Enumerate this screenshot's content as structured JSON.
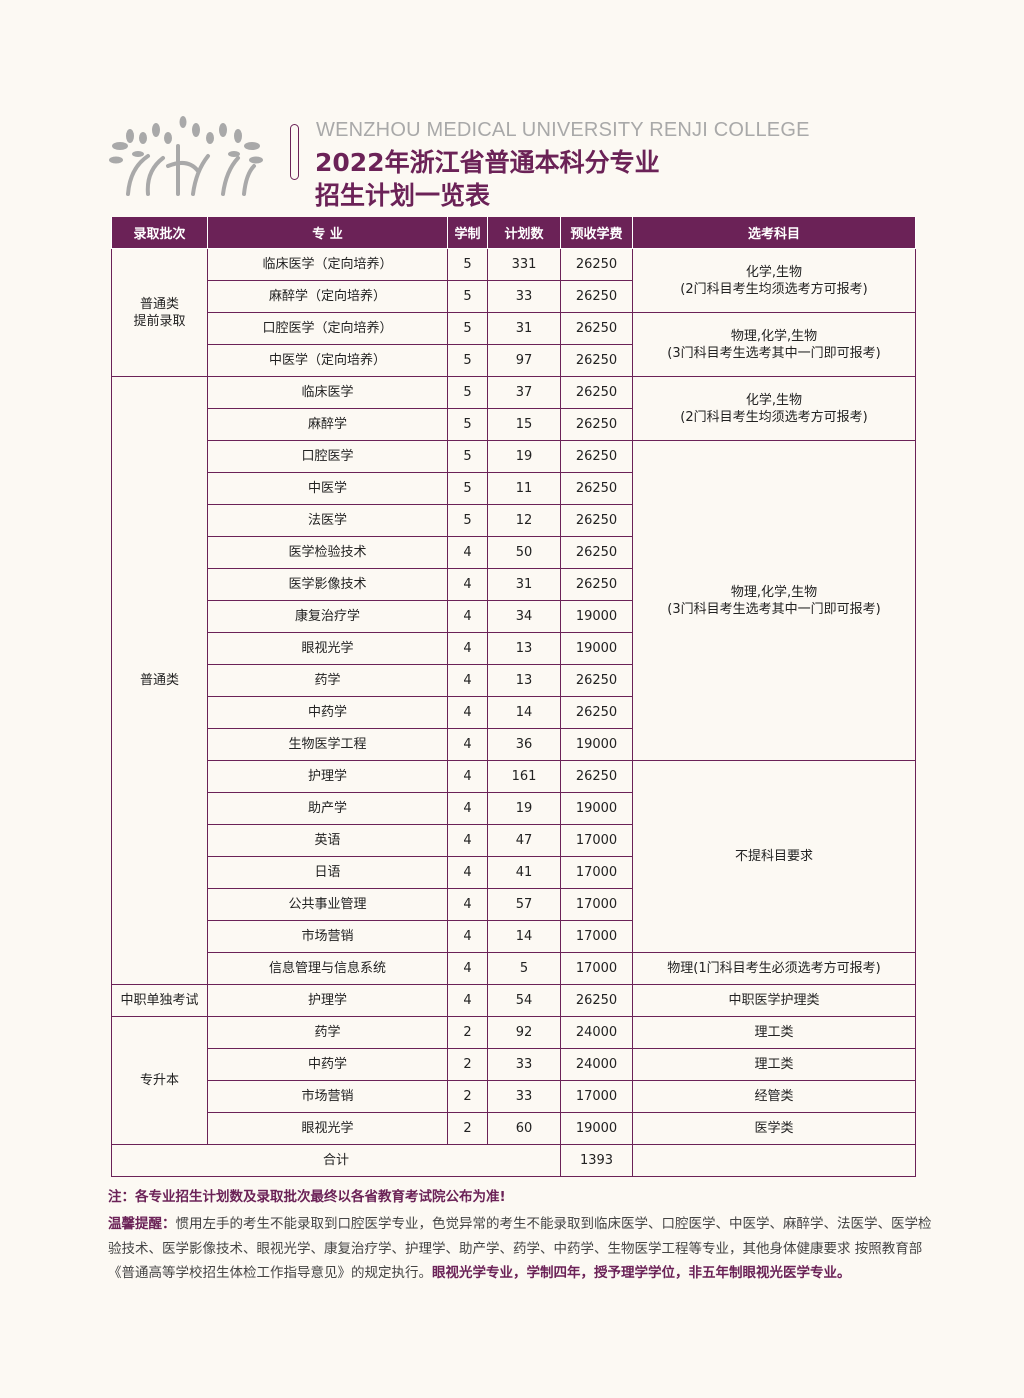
{
  "header": {
    "college_en": "WENZHOU MEDICAL UNIVERSITY RENJI COLLEGE",
    "title_line1": "2022年浙江省普通本科分专业",
    "title_line2": "招生计划一览表"
  },
  "colors": {
    "accent": "#6b2257",
    "background": "#fcf9f3",
    "logo": "#a9a9a9"
  },
  "table": {
    "columns": [
      "录取批次",
      "专 业",
      "学制",
      "计划数",
      "预收学费",
      "选考科目"
    ],
    "batches": [
      {
        "label": "普通类\n提前录取",
        "rows": 4
      },
      {
        "label": "普通类",
        "rows": 19
      },
      {
        "label": "中职单独考试",
        "rows": 1
      },
      {
        "label": "专升本",
        "rows": 4
      }
    ],
    "rows": [
      {
        "major": "临床医学（定向培养）",
        "years": "5",
        "plan": "331",
        "fee": "26250"
      },
      {
        "major": "麻醉学（定向培养）",
        "years": "5",
        "plan": "33",
        "fee": "26250"
      },
      {
        "major": "口腔医学（定向培养）",
        "years": "5",
        "plan": "31",
        "fee": "26250"
      },
      {
        "major": "中医学（定向培养）",
        "years": "5",
        "plan": "97",
        "fee": "26250"
      },
      {
        "major": "临床医学",
        "years": "5",
        "plan": "37",
        "fee": "26250"
      },
      {
        "major": "麻醉学",
        "years": "5",
        "plan": "15",
        "fee": "26250"
      },
      {
        "major": "口腔医学",
        "years": "5",
        "plan": "19",
        "fee": "26250"
      },
      {
        "major": "中医学",
        "years": "5",
        "plan": "11",
        "fee": "26250"
      },
      {
        "major": "法医学",
        "years": "5",
        "plan": "12",
        "fee": "26250"
      },
      {
        "major": "医学检验技术",
        "years": "4",
        "plan": "50",
        "fee": "26250"
      },
      {
        "major": "医学影像技术",
        "years": "4",
        "plan": "31",
        "fee": "26250"
      },
      {
        "major": "康复治疗学",
        "years": "4",
        "plan": "34",
        "fee": "19000"
      },
      {
        "major": "眼视光学",
        "years": "4",
        "plan": "13",
        "fee": "19000"
      },
      {
        "major": "药学",
        "years": "4",
        "plan": "13",
        "fee": "26250"
      },
      {
        "major": "中药学",
        "years": "4",
        "plan": "14",
        "fee": "26250"
      },
      {
        "major": "生物医学工程",
        "years": "4",
        "plan": "36",
        "fee": "19000"
      },
      {
        "major": "护理学",
        "years": "4",
        "plan": "161",
        "fee": "26250"
      },
      {
        "major": "助产学",
        "years": "4",
        "plan": "19",
        "fee": "19000"
      },
      {
        "major": "英语",
        "years": "4",
        "plan": "47",
        "fee": "17000"
      },
      {
        "major": "日语",
        "years": "4",
        "plan": "41",
        "fee": "17000"
      },
      {
        "major": "公共事业管理",
        "years": "4",
        "plan": "57",
        "fee": "17000"
      },
      {
        "major": "市场营销",
        "years": "4",
        "plan": "14",
        "fee": "17000"
      },
      {
        "major": "信息管理与信息系统",
        "years": "4",
        "plan": "5",
        "fee": "17000"
      },
      {
        "major": "护理学",
        "years": "4",
        "plan": "54",
        "fee": "26250"
      },
      {
        "major": "药学",
        "years": "2",
        "plan": "92",
        "fee": "24000"
      },
      {
        "major": "中药学",
        "years": "2",
        "plan": "33",
        "fee": "24000"
      },
      {
        "major": "市场营销",
        "years": "2",
        "plan": "33",
        "fee": "17000"
      },
      {
        "major": "眼视光学",
        "years": "2",
        "plan": "60",
        "fee": "19000"
      }
    ],
    "subjects": [
      {
        "label": "化学,生物\n(2门科目考生均须选考方可报考)",
        "rows": 2
      },
      {
        "label": "物理,化学,生物\n(3门科目考生选考其中一门即可报考)",
        "rows": 2
      },
      {
        "label": "化学,生物\n(2门科目考生均须选考方可报考)",
        "rows": 2
      },
      {
        "label": "物理,化学,生物\n(3门科目考生选考其中一门即可报考)",
        "rows": 10
      },
      {
        "label": "不提科目要求",
        "rows": 6
      },
      {
        "label": "物理(1门科目考生必须选考方可报考)",
        "rows": 1
      },
      {
        "label": "中职医学护理类",
        "rows": 1
      },
      {
        "label": "理工类",
        "rows": 1
      },
      {
        "label": "理工类",
        "rows": 1
      },
      {
        "label": "经管类",
        "rows": 1
      },
      {
        "label": "医学类",
        "rows": 1
      }
    ],
    "total_label": "合计",
    "total_plan": "1393"
  },
  "notes": {
    "note": "注：各专业招生计划数及录取批次最终以各省教育考试院公布为准!",
    "reminder_label": "温馨提醒：",
    "reminder_text": "惯用左手的考生不能录取到口腔医学专业，色觉异常的考生不能录取到临床医学、口腔医学、中医学、麻醉学、法医学、医学检验技术、医学影像技术、眼视光学、康复治疗学、护理学、助产学、药学、中药学、生物医学工程等专业，其他身体健康要求 按照教育部《普通高等学校招生体检工作指导意见》的规定执行。",
    "reminder_bold": "眼视光学专业，学制四年，授予理学学位，非五年制眼视光医学专业。"
  }
}
